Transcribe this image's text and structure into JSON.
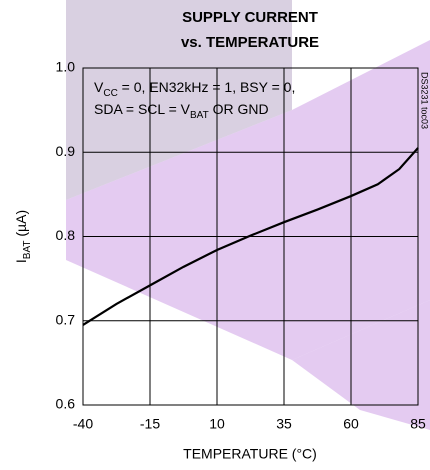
{
  "chart_data": {
    "type": "line",
    "title": [
      "SUPPLY CURRENT",
      "vs. TEMPERATURE"
    ],
    "xlabel": "TEMPERATURE (°C)",
    "ylabel": [
      "I",
      "BAT",
      " (µA)"
    ],
    "annotations": [
      [
        "V",
        "CC",
        " = 0, EN32kHz = 1, BSY = 0,"
      ],
      [
        "SDA = SCL = V",
        "BAT",
        " OR GND"
      ]
    ],
    "note": "DS3231 toc03",
    "x": [
      -40,
      -27.5,
      -15,
      -2.5,
      10,
      22.5,
      35,
      47.5,
      60,
      70,
      78,
      85
    ],
    "values": [
      0.695,
      0.72,
      0.742,
      0.764,
      0.784,
      0.801,
      0.817,
      0.832,
      0.848,
      0.862,
      0.88,
      0.905
    ],
    "color": "#000000",
    "xlim": [
      -40,
      85
    ],
    "xticks": [
      -40,
      -15,
      10,
      35,
      60,
      85
    ],
    "ylim": [
      0.6,
      1
    ],
    "yticks": [
      0.6,
      0.7,
      0.8,
      0.9,
      {
        "value": 1,
        "label": "1.0"
      }
    ],
    "grid": true
  }
}
